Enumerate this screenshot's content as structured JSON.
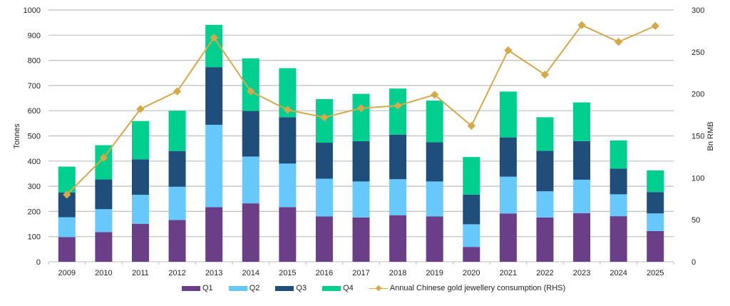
{
  "chart_data": {
    "type": "bar",
    "subtype": "stacked-bar-with-line",
    "categories": [
      "2009",
      "2010",
      "2011",
      "2012",
      "2013",
      "2014",
      "2015",
      "2016",
      "2017",
      "2018",
      "2019",
      "2020",
      "2021",
      "2022",
      "2023",
      "2024",
      "2025"
    ],
    "series": [
      {
        "name": "Q1",
        "axis": "left",
        "color": "#6b3f87",
        "values": [
          98,
          118,
          151,
          166,
          217,
          232,
          217,
          180,
          176,
          185,
          180,
          59,
          192,
          176,
          193,
          181,
          122
        ]
      },
      {
        "name": "Q2",
        "axis": "left",
        "color": "#66c8fb",
        "values": [
          79,
          91,
          115,
          132,
          327,
          186,
          173,
          150,
          143,
          143,
          139,
          90,
          146,
          104,
          133,
          87,
          70
        ]
      },
      {
        "name": "Q3",
        "axis": "left",
        "color": "#1f4e7a",
        "values": [
          98,
          118,
          141,
          142,
          229,
          181,
          184,
          143,
          160,
          177,
          156,
          118,
          156,
          161,
          153,
          102,
          85
        ]
      },
      {
        "name": "Q4",
        "axis": "left",
        "color": "#00cf8f",
        "values": [
          103,
          136,
          152,
          160,
          168,
          209,
          195,
          173,
          188,
          183,
          165,
          149,
          182,
          133,
          154,
          112,
          86
        ]
      }
    ],
    "line_series": {
      "name": "Annual Chinese gold jewellery consumption (RHS)",
      "axis": "right",
      "color": "#d4a94a",
      "marker": "diamond",
      "values": [
        80,
        124,
        182,
        203,
        267,
        203,
        181,
        172,
        183,
        186,
        199,
        162,
        252,
        223,
        282,
        262,
        281
      ]
    },
    "title": "",
    "xlabel": "",
    "ylabel": "Tonnes",
    "ylabel_right": "Bn RMB",
    "ylim": [
      0,
      1000
    ],
    "ylim_right": [
      0,
      300
    ],
    "yticks": [
      0,
      100,
      200,
      300,
      400,
      500,
      600,
      700,
      800,
      900,
      1000
    ],
    "yticks_right": [
      0,
      50,
      100,
      150,
      200,
      250,
      300
    ],
    "grid": true,
    "legend_position": "bottom"
  },
  "legend": {
    "q1": "Q1",
    "q2": "Q2",
    "q3": "Q3",
    "q4": "Q4",
    "line": "Annual Chinese gold jewellery consumption (RHS)"
  }
}
